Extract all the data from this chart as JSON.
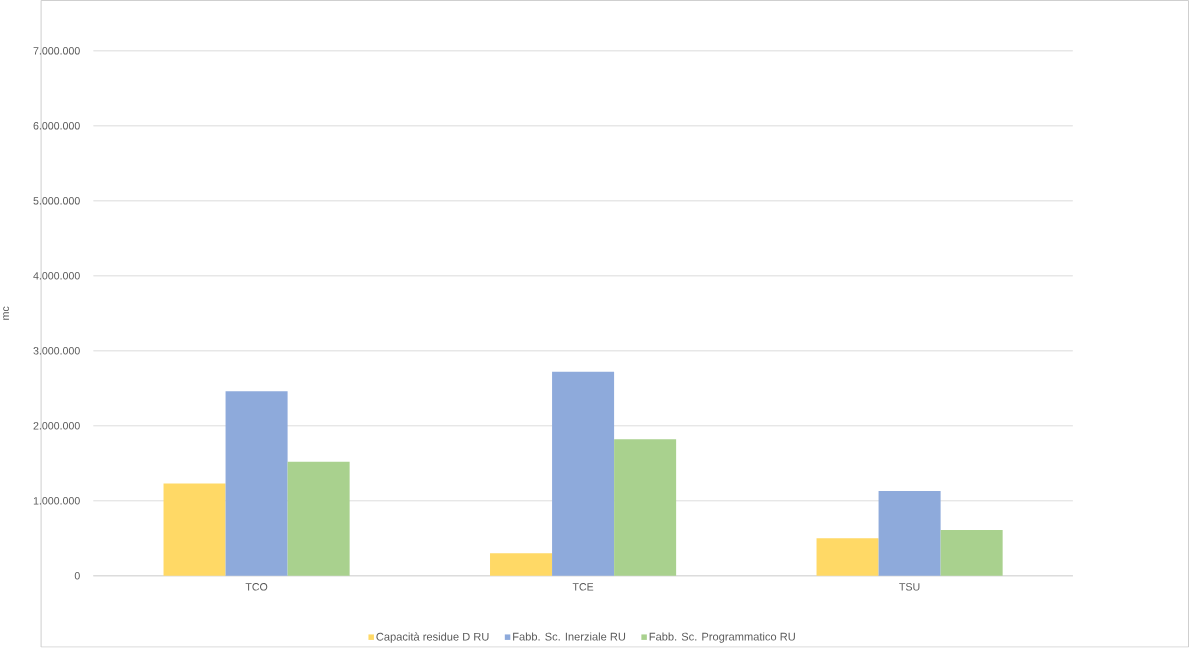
{
  "chart_data": {
    "type": "bar",
    "ylabel": "mc",
    "categories": [
      "TCO",
      "TCE",
      "TSU"
    ],
    "series": [
      {
        "name": "Capacità residue D RU",
        "color": "#ffd966",
        "values": [
          1230000,
          300000,
          500000
        ]
      },
      {
        "name": "Fabb. Sc. Inerziale RU",
        "color": "#8eaadb",
        "values": [
          2460000,
          2720000,
          1130000
        ]
      },
      {
        "name": "Fabb. Sc. Programmatico RU",
        "color": "#a9d18e",
        "values": [
          1520000,
          1820000,
          610000
        ]
      }
    ],
    "ylim": [
      0,
      7000000
    ],
    "yticks": [
      0,
      {
        "value": 1000000,
        "label": "1.000.000"
      },
      {
        "value": 2000000,
        "label": "2.000.000"
      },
      {
        "value": 3000000,
        "label": "3.000.000"
      },
      {
        "value": 4000000,
        "label": "4.000.000"
      },
      {
        "value": 5000000,
        "label": "5.000.000"
      },
      {
        "value": 6000000,
        "label": "6.000.000"
      },
      {
        "value": 7000000,
        "label": "7.000.000"
      }
    ],
    "grid": "y",
    "legend": "bottom"
  }
}
